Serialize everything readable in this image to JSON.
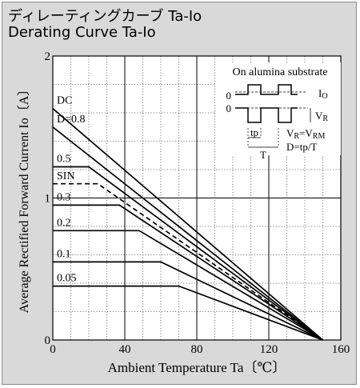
{
  "header": {
    "title_jp": "ディレーティングカーブ Ta-Io",
    "title_en": "Derating Curve Ta-Io"
  },
  "chart_data": {
    "type": "line",
    "title": "Derating Curve Ta-Io",
    "xlabel": "Ambient Temperature  Ta〔℃〕",
    "ylabel": "Average Rectified Forward Current  Io〔A〕",
    "xlim": [
      0,
      160
    ],
    "ylim": [
      0,
      2
    ],
    "xticks": [
      "0",
      "40",
      "80",
      "120",
      "160"
    ],
    "yticks": [
      "0",
      "1",
      "2"
    ],
    "grid": true,
    "colors": {
      "panel": "#d9d9d9",
      "plot": "#ffffff",
      "line": "#000000"
    },
    "series": [
      {
        "name": "DC",
        "dashed": false,
        "points": [
          [
            0,
            1.63
          ],
          [
            150,
            0
          ]
        ]
      },
      {
        "name": "D=0.8",
        "dashed": false,
        "points": [
          [
            0,
            1.5
          ],
          [
            150,
            0
          ]
        ]
      },
      {
        "name": "0.5",
        "dashed": false,
        "points": [
          [
            0,
            1.22
          ],
          [
            20,
            1.22
          ],
          [
            150,
            0
          ]
        ]
      },
      {
        "name": "SIN",
        "dashed": true,
        "points": [
          [
            0,
            1.1
          ],
          [
            25,
            1.1
          ],
          [
            150,
            0
          ]
        ]
      },
      {
        "name": "0.3",
        "dashed": false,
        "points": [
          [
            0,
            0.95
          ],
          [
            37,
            0.95
          ],
          [
            150,
            0
          ]
        ]
      },
      {
        "name": "0.2",
        "dashed": false,
        "points": [
          [
            0,
            0.77
          ],
          [
            48,
            0.77
          ],
          [
            150,
            0
          ]
        ]
      },
      {
        "name": "0.1",
        "dashed": false,
        "points": [
          [
            0,
            0.55
          ],
          [
            60,
            0.55
          ],
          [
            150,
            0
          ]
        ]
      },
      {
        "name": "0.05",
        "dashed": false,
        "points": [
          [
            0,
            0.38
          ],
          [
            70,
            0.38
          ],
          [
            150,
            0
          ]
        ]
      }
    ],
    "inset": {
      "title": "On alumina substrate",
      "zero_label": "0",
      "io_label": "I",
      "io_sub": "O",
      "vr_label": "V",
      "vr_sub": "R",
      "eq1_a": "V",
      "eq1_a_sub": "R",
      "eq1_b": "=V",
      "eq1_b_sub": "RM",
      "eq2": "D=tp/T",
      "tp_label": "tp",
      "t_label": "T"
    }
  }
}
